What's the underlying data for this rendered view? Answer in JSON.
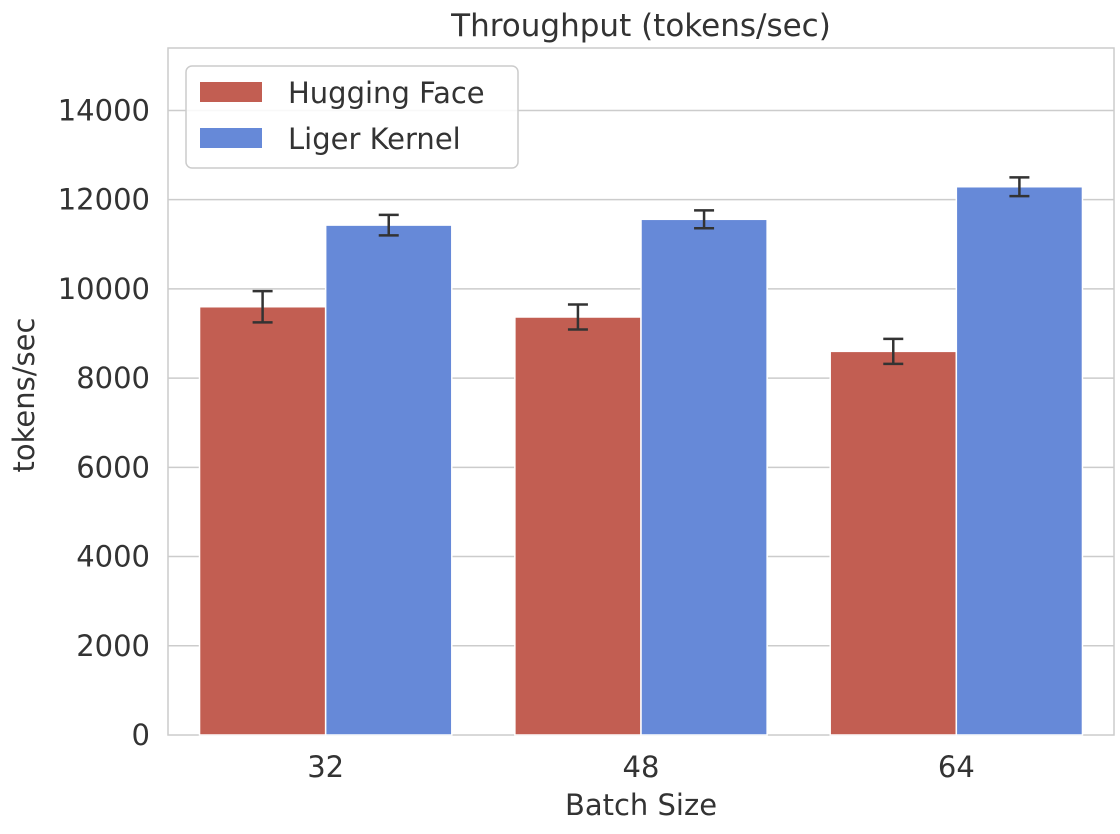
{
  "chart_data": {
    "type": "bar",
    "title": "Throughput (tokens/sec)",
    "xlabel": "Batch Size",
    "ylabel": "tokens/sec",
    "categories": [
      "32",
      "48",
      "64"
    ],
    "ylim": [
      0,
      15400
    ],
    "yticks": [
      0,
      2000,
      4000,
      6000,
      8000,
      10000,
      12000,
      14000
    ],
    "grid": true,
    "legend_position": "top-left",
    "series": [
      {
        "name": "Hugging Face",
        "color": "#c25e52",
        "values": [
          9600,
          9370,
          8600
        ],
        "errors": [
          350,
          280,
          280
        ]
      },
      {
        "name": "Liger Kernel",
        "color": "#6689d8",
        "values": [
          11430,
          11560,
          12290
        ],
        "errors": [
          230,
          200,
          210
        ]
      }
    ]
  }
}
